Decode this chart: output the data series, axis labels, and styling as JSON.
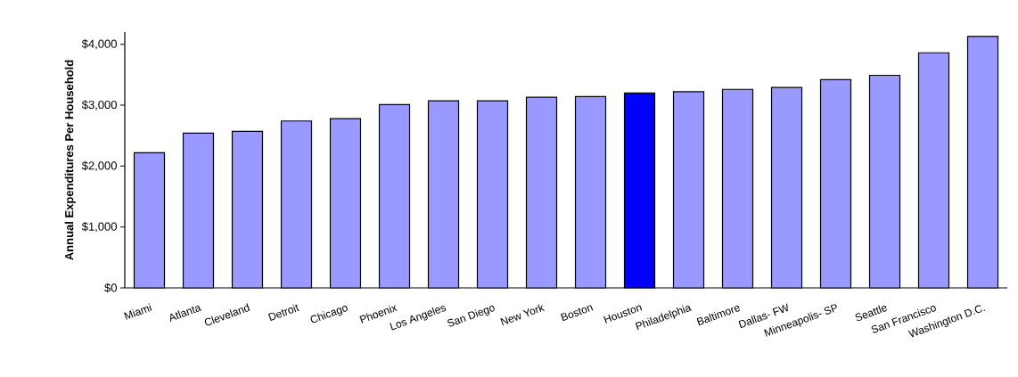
{
  "chart_data": {
    "type": "bar",
    "ylabel": "Annual Expenditures Per Household",
    "categories": [
      "Miami",
      "Atlanta",
      "Cleveland",
      "Detroit",
      "Chicago",
      "Phoenix",
      "Los Angeles",
      "San Diego",
      "New York",
      "Boston",
      "Houston",
      "Philadelphia",
      "Baltimore",
      "Dallas- FW",
      "Minneapolis- SP",
      "Seattle",
      "San Francisco",
      "Washington D.C."
    ],
    "values": [
      2220,
      2540,
      2570,
      2740,
      2780,
      3010,
      3070,
      3070,
      3130,
      3140,
      3200,
      3220,
      3260,
      3290,
      3420,
      3490,
      3860,
      4130
    ],
    "colors": [
      "#9999ff",
      "#9999ff",
      "#9999ff",
      "#9999ff",
      "#9999ff",
      "#9999ff",
      "#9999ff",
      "#9999ff",
      "#9999ff",
      "#9999ff",
      "#0000ff",
      "#9999ff",
      "#9999ff",
      "#9999ff",
      "#9999ff",
      "#9999ff",
      "#9999ff",
      "#9999ff"
    ],
    "ylim": [
      0,
      4200
    ],
    "yticks": [
      {
        "value": 0,
        "label": "$0"
      },
      {
        "value": 1000,
        "label": "$1,000"
      },
      {
        "value": 2000,
        "label": "$2,000"
      },
      {
        "value": 3000,
        "label": "$3,000"
      },
      {
        "value": 4000,
        "label": "$4,000"
      }
    ],
    "grid": false
  }
}
